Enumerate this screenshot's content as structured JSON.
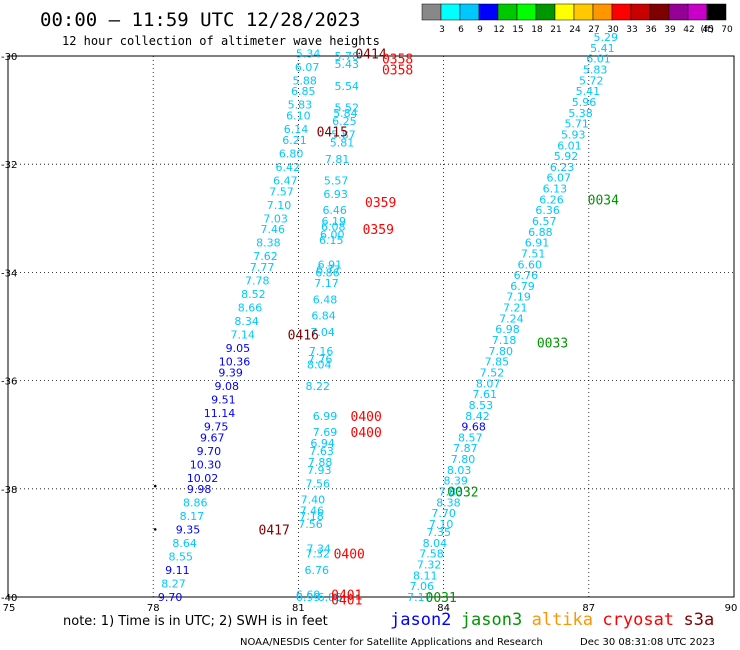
{
  "header": {
    "title": "00:00 – 11:59 UTC 12/28/2023",
    "subtitle": "12 hour collection of altimeter wave heights"
  },
  "legend": {
    "ticks": [
      "3",
      "6",
      "9",
      "12",
      "15",
      "18",
      "21",
      "24",
      "27",
      "30",
      "33",
      "36",
      "39",
      "42",
      "45",
      "70"
    ],
    "unit": "(ft)",
    "colors": [
      "#888888",
      "#00ffff",
      "#00c8ff",
      "#0000ff",
      "#00c800",
      "#00ff00",
      "#009600",
      "#ffff00",
      "#ffc800",
      "#ff9600",
      "#ff0000",
      "#c80000",
      "#800000",
      "#960096",
      "#c800c8",
      "#000000"
    ]
  },
  "axes": {
    "x_ticks": [
      "75",
      "78",
      "81",
      "84",
      "87",
      "90"
    ],
    "y_ticks": [
      "-30",
      "-32",
      "-34",
      "-36",
      "-38",
      "-40"
    ],
    "xlim": [
      75,
      90
    ],
    "ylim": [
      -40,
      -30
    ]
  },
  "colors": {
    "cyan": "#00c8ff",
    "blue": "#0000ff",
    "red": "#ff0000",
    "darkred": "#800000",
    "green": "#009600"
  },
  "chart_data": {
    "type": "scatter",
    "points": [
      {
        "lon": 81.2,
        "lat": -29.95,
        "v": "5.34",
        "c": "cyan"
      },
      {
        "lon": 81.18,
        "lat": -30.2,
        "v": "6.07",
        "c": "cyan"
      },
      {
        "lon": 81.13,
        "lat": -30.45,
        "v": "5.88",
        "c": "cyan"
      },
      {
        "lon": 81.1,
        "lat": -30.65,
        "v": "6.85",
        "c": "cyan"
      },
      {
        "lon": 81.03,
        "lat": -30.9,
        "v": "5.83",
        "c": "cyan"
      },
      {
        "lon": 81.0,
        "lat": -31.1,
        "v": "6.10",
        "c": "cyan"
      },
      {
        "lon": 80.95,
        "lat": -31.35,
        "v": "6.14",
        "c": "cyan"
      },
      {
        "lon": 80.92,
        "lat": -31.55,
        "v": "6.21",
        "c": "cyan"
      },
      {
        "lon": 80.85,
        "lat": -31.8,
        "v": "6.80",
        "c": "cyan"
      },
      {
        "lon": 80.78,
        "lat": -32.05,
        "v": "6.42",
        "c": "cyan"
      },
      {
        "lon": 80.73,
        "lat": -32.3,
        "v": "6.47",
        "c": "cyan"
      },
      {
        "lon": 80.65,
        "lat": -32.5,
        "v": "7.57",
        "c": "cyan"
      },
      {
        "lon": 80.6,
        "lat": -32.75,
        "v": "7.10",
        "c": "cyan"
      },
      {
        "lon": 80.53,
        "lat": -33.0,
        "v": "7.03",
        "c": "cyan"
      },
      {
        "lon": 80.47,
        "lat": -33.2,
        "v": "7.46",
        "c": "cyan"
      },
      {
        "lon": 80.38,
        "lat": -33.45,
        "v": "8.38",
        "c": "cyan"
      },
      {
        "lon": 80.32,
        "lat": -33.7,
        "v": "7.62",
        "c": "cyan"
      },
      {
        "lon": 80.25,
        "lat": -33.9,
        "v": "7.77",
        "c": "cyan"
      },
      {
        "lon": 80.15,
        "lat": -34.15,
        "v": "7.78",
        "c": "cyan"
      },
      {
        "lon": 80.07,
        "lat": -34.4,
        "v": "8.52",
        "c": "cyan"
      },
      {
        "lon": 80.0,
        "lat": -34.65,
        "v": "8.66",
        "c": "cyan"
      },
      {
        "lon": 79.93,
        "lat": -34.9,
        "v": "8.34",
        "c": "cyan"
      },
      {
        "lon": 79.85,
        "lat": -35.15,
        "v": "7.14",
        "c": "cyan"
      },
      {
        "lon": 79.75,
        "lat": -35.4,
        "v": "9.05",
        "c": "blue"
      },
      {
        "lon": 79.68,
        "lat": -35.65,
        "v": "10.36",
        "c": "blue"
      },
      {
        "lon": 79.6,
        "lat": -35.85,
        "v": "9.39",
        "c": "blue"
      },
      {
        "lon": 79.52,
        "lat": -36.1,
        "v": "9.08",
        "c": "blue"
      },
      {
        "lon": 79.45,
        "lat": -36.35,
        "v": "9.51",
        "c": "blue"
      },
      {
        "lon": 79.37,
        "lat": -36.6,
        "v": "11.14",
        "c": "blue"
      },
      {
        "lon": 79.3,
        "lat": -36.85,
        "v": "9.75",
        "c": "blue"
      },
      {
        "lon": 79.22,
        "lat": -37.05,
        "v": "9.67",
        "c": "blue"
      },
      {
        "lon": 79.15,
        "lat": -37.3,
        "v": "9.70",
        "c": "blue"
      },
      {
        "lon": 79.08,
        "lat": -37.55,
        "v": "10.30",
        "c": "blue"
      },
      {
        "lon": 79.02,
        "lat": -37.8,
        "v": "10.02",
        "c": "blue"
      },
      {
        "lon": 78.95,
        "lat": -38.0,
        "v": "9.98",
        "c": "blue"
      },
      {
        "lon": 78.87,
        "lat": -38.25,
        "v": "8.86",
        "c": "cyan"
      },
      {
        "lon": 78.8,
        "lat": -38.5,
        "v": "8.17",
        "c": "cyan"
      },
      {
        "lon": 78.72,
        "lat": -38.75,
        "v": "9.35",
        "c": "blue"
      },
      {
        "lon": 78.65,
        "lat": -39.0,
        "v": "8.64",
        "c": "cyan"
      },
      {
        "lon": 78.57,
        "lat": -39.25,
        "v": "8.55",
        "c": "cyan"
      },
      {
        "lon": 78.5,
        "lat": -39.5,
        "v": "9.11",
        "c": "blue"
      },
      {
        "lon": 78.42,
        "lat": -39.75,
        "v": "8.27",
        "c": "cyan"
      },
      {
        "lon": 78.35,
        "lat": -40.0,
        "v": "9.70",
        "c": "blue"
      },
      {
        "lon": 82.0,
        "lat": -30.0,
        "v": "5.70",
        "c": "cyan"
      },
      {
        "lon": 82.0,
        "lat": -30.15,
        "v": "5.43",
        "c": "cyan"
      },
      {
        "lon": 82.0,
        "lat": -30.55,
        "v": "5.54",
        "c": "cyan"
      },
      {
        "lon": 82.0,
        "lat": -30.95,
        "v": "5.52",
        "c": "cyan"
      },
      {
        "lon": 81.97,
        "lat": -31.05,
        "v": "5.84",
        "c": "cyan"
      },
      {
        "lon": 81.95,
        "lat": -31.2,
        "v": "6.25",
        "c": "cyan"
      },
      {
        "lon": 81.93,
        "lat": -31.45,
        "v": "5.87",
        "c": "cyan"
      },
      {
        "lon": 81.9,
        "lat": -31.6,
        "v": "5.81",
        "c": "cyan"
      },
      {
        "lon": 81.8,
        "lat": -31.9,
        "v": "7.81",
        "c": "cyan"
      },
      {
        "lon": 81.78,
        "lat": -32.3,
        "v": "5.57",
        "c": "cyan"
      },
      {
        "lon": 81.77,
        "lat": -32.55,
        "v": "6.93",
        "c": "cyan"
      },
      {
        "lon": 81.75,
        "lat": -32.85,
        "v": "6.46",
        "c": "cyan"
      },
      {
        "lon": 81.73,
        "lat": -33.05,
        "v": "6.19",
        "c": "cyan"
      },
      {
        "lon": 81.72,
        "lat": -33.15,
        "v": "6.08",
        "c": "cyan"
      },
      {
        "lon": 81.7,
        "lat": -33.3,
        "v": "6.00",
        "c": "cyan"
      },
      {
        "lon": 81.68,
        "lat": -33.4,
        "v": "6.15",
        "c": "cyan"
      },
      {
        "lon": 81.65,
        "lat": -33.85,
        "v": "6.91",
        "c": "cyan"
      },
      {
        "lon": 81.62,
        "lat": -33.95,
        "v": "6.77",
        "c": "cyan"
      },
      {
        "lon": 81.6,
        "lat": -34.0,
        "v": "6.86",
        "c": "cyan"
      },
      {
        "lon": 81.58,
        "lat": -34.2,
        "v": "7.17",
        "c": "cyan"
      },
      {
        "lon": 81.55,
        "lat": -34.5,
        "v": "6.48",
        "c": "cyan"
      },
      {
        "lon": 81.52,
        "lat": -34.8,
        "v": "6.84",
        "c": "cyan"
      },
      {
        "lon": 81.5,
        "lat": -35.1,
        "v": "7.04",
        "c": "cyan"
      },
      {
        "lon": 81.47,
        "lat": -35.45,
        "v": "7.16",
        "c": "cyan"
      },
      {
        "lon": 81.45,
        "lat": -35.6,
        "v": "7.76",
        "c": "cyan"
      },
      {
        "lon": 81.43,
        "lat": -35.7,
        "v": "8.04",
        "c": "cyan"
      },
      {
        "lon": 81.4,
        "lat": -36.1,
        "v": "8.22",
        "c": "cyan"
      },
      {
        "lon": 81.55,
        "lat": -36.65,
        "v": "6.99",
        "c": "cyan"
      },
      {
        "lon": 81.55,
        "lat": -36.95,
        "v": "7.69",
        "c": "cyan"
      },
      {
        "lon": 81.5,
        "lat": -37.15,
        "v": "6.94",
        "c": "cyan"
      },
      {
        "lon": 81.48,
        "lat": -37.3,
        "v": "7.63",
        "c": "cyan"
      },
      {
        "lon": 81.45,
        "lat": -37.5,
        "v": "7.88",
        "c": "cyan"
      },
      {
        "lon": 81.43,
        "lat": -37.65,
        "v": "7.93",
        "c": "cyan"
      },
      {
        "lon": 81.4,
        "lat": -37.9,
        "v": "7.56",
        "c": "cyan"
      },
      {
        "lon": 81.3,
        "lat": -38.2,
        "v": "7.40",
        "c": "cyan"
      },
      {
        "lon": 81.28,
        "lat": -38.4,
        "v": "7.46",
        "c": "cyan"
      },
      {
        "lon": 81.27,
        "lat": -38.5,
        "v": "7.18",
        "c": "cyan"
      },
      {
        "lon": 81.25,
        "lat": -38.65,
        "v": "7.56",
        "c": "cyan"
      },
      {
        "lon": 81.42,
        "lat": -39.1,
        "v": "7.34",
        "c": "cyan"
      },
      {
        "lon": 81.4,
        "lat": -39.2,
        "v": "7.32",
        "c": "cyan"
      },
      {
        "lon": 81.38,
        "lat": -39.5,
        "v": "6.76",
        "c": "cyan"
      },
      {
        "lon": 81.2,
        "lat": -39.95,
        "v": "6.69",
        "c": "cyan"
      },
      {
        "lon": 81.2,
        "lat": -40.0,
        "v": "6.99",
        "c": "cyan"
      },
      {
        "lon": 81.65,
        "lat": -40.0,
        "v": "6.85",
        "c": "cyan"
      },
      {
        "lon": 83.5,
        "lat": -40.0,
        "v": "7.17",
        "c": "cyan"
      },
      {
        "lon": 83.55,
        "lat": -39.8,
        "v": "7.06",
        "c": "cyan"
      },
      {
        "lon": 83.62,
        "lat": -39.6,
        "v": "8.11",
        "c": "cyan"
      },
      {
        "lon": 83.7,
        "lat": -39.4,
        "v": "7.32",
        "c": "cyan"
      },
      {
        "lon": 83.75,
        "lat": -39.2,
        "v": "7.58",
        "c": "cyan"
      },
      {
        "lon": 83.82,
        "lat": -39.0,
        "v": "8.04",
        "c": "cyan"
      },
      {
        "lon": 83.9,
        "lat": -38.8,
        "v": "7.35",
        "c": "cyan"
      },
      {
        "lon": 83.95,
        "lat": -38.65,
        "v": "7.10",
        "c": "cyan"
      },
      {
        "lon": 84.0,
        "lat": -38.45,
        "v": "7.70",
        "c": "cyan"
      },
      {
        "lon": 84.1,
        "lat": -38.25,
        "v": "8.38",
        "c": "cyan"
      },
      {
        "lon": 84.15,
        "lat": -38.05,
        "v": "7.83",
        "c": "cyan"
      },
      {
        "lon": 84.25,
        "lat": -37.85,
        "v": "8.39",
        "c": "cyan"
      },
      {
        "lon": 84.32,
        "lat": -37.65,
        "v": "8.03",
        "c": "cyan"
      },
      {
        "lon": 84.4,
        "lat": -37.45,
        "v": "7.80",
        "c": "cyan"
      },
      {
        "lon": 84.45,
        "lat": -37.25,
        "v": "7.87",
        "c": "cyan"
      },
      {
        "lon": 84.55,
        "lat": -37.05,
        "v": "8.57",
        "c": "cyan"
      },
      {
        "lon": 84.62,
        "lat": -36.85,
        "v": "9.68",
        "c": "blue"
      },
      {
        "lon": 84.7,
        "lat": -36.65,
        "v": "8.42",
        "c": "cyan"
      },
      {
        "lon": 84.77,
        "lat": -36.45,
        "v": "8.53",
        "c": "cyan"
      },
      {
        "lon": 84.85,
        "lat": -36.25,
        "v": "7.61",
        "c": "cyan"
      },
      {
        "lon": 84.92,
        "lat": -36.05,
        "v": "8.07",
        "c": "cyan"
      },
      {
        "lon": 85.0,
        "lat": -35.85,
        "v": "7.52",
        "c": "cyan"
      },
      {
        "lon": 85.1,
        "lat": -35.65,
        "v": "7.85",
        "c": "cyan"
      },
      {
        "lon": 85.18,
        "lat": -35.45,
        "v": "7.80",
        "c": "cyan"
      },
      {
        "lon": 85.25,
        "lat": -35.25,
        "v": "7.18",
        "c": "cyan"
      },
      {
        "lon": 85.32,
        "lat": -35.05,
        "v": "6.98",
        "c": "cyan"
      },
      {
        "lon": 85.4,
        "lat": -34.85,
        "v": "7.24",
        "c": "cyan"
      },
      {
        "lon": 85.48,
        "lat": -34.65,
        "v": "7.21",
        "c": "cyan"
      },
      {
        "lon": 85.55,
        "lat": -34.45,
        "v": "7.19",
        "c": "cyan"
      },
      {
        "lon": 85.63,
        "lat": -34.25,
        "v": "6.79",
        "c": "cyan"
      },
      {
        "lon": 85.7,
        "lat": -34.05,
        "v": "6.76",
        "c": "cyan"
      },
      {
        "lon": 85.78,
        "lat": -33.85,
        "v": "6.60",
        "c": "cyan"
      },
      {
        "lon": 85.85,
        "lat": -33.65,
        "v": "7.51",
        "c": "cyan"
      },
      {
        "lon": 85.93,
        "lat": -33.45,
        "v": "6.91",
        "c": "cyan"
      },
      {
        "lon": 86.0,
        "lat": -33.25,
        "v": "6.88",
        "c": "cyan"
      },
      {
        "lon": 86.08,
        "lat": -33.05,
        "v": "6.57",
        "c": "cyan"
      },
      {
        "lon": 86.15,
        "lat": -32.85,
        "v": "6.36",
        "c": "cyan"
      },
      {
        "lon": 86.23,
        "lat": -32.65,
        "v": "6.26",
        "c": "cyan"
      },
      {
        "lon": 86.3,
        "lat": -32.45,
        "v": "6.13",
        "c": "cyan"
      },
      {
        "lon": 86.38,
        "lat": -32.25,
        "v": "6.07",
        "c": "cyan"
      },
      {
        "lon": 86.45,
        "lat": -32.05,
        "v": "6.23",
        "c": "cyan"
      },
      {
        "lon": 86.53,
        "lat": -31.85,
        "v": "5.92",
        "c": "cyan"
      },
      {
        "lon": 86.6,
        "lat": -31.65,
        "v": "6.01",
        "c": "cyan"
      },
      {
        "lon": 86.68,
        "lat": -31.45,
        "v": "5.93",
        "c": "cyan"
      },
      {
        "lon": 86.75,
        "lat": -31.25,
        "v": "5.71",
        "c": "cyan"
      },
      {
        "lon": 86.83,
        "lat": -31.05,
        "v": "5.38",
        "c": "cyan"
      },
      {
        "lon": 86.9,
        "lat": -30.85,
        "v": "5.96",
        "c": "cyan"
      },
      {
        "lon": 86.98,
        "lat": -30.65,
        "v": "5.41",
        "c": "cyan"
      },
      {
        "lon": 87.05,
        "lat": -30.45,
        "v": "5.72",
        "c": "cyan"
      },
      {
        "lon": 87.13,
        "lat": -30.25,
        "v": "5.83",
        "c": "cyan"
      },
      {
        "lon": 87.2,
        "lat": -30.05,
        "v": "6.01",
        "c": "cyan"
      },
      {
        "lon": 87.28,
        "lat": -29.85,
        "v": "5.41",
        "c": "cyan"
      },
      {
        "lon": 87.35,
        "lat": -29.65,
        "v": "5.29",
        "c": "cyan"
      }
    ],
    "time_labels": [
      {
        "lon": 82.5,
        "lat": -29.95,
        "t": "0414",
        "c": "darkred"
      },
      {
        "lon": 83.05,
        "lat": -30.05,
        "t": "0358",
        "c": "red"
      },
      {
        "lon": 83.05,
        "lat": -30.25,
        "t": "0358",
        "c": "red"
      },
      {
        "lon": 81.7,
        "lat": -31.4,
        "t": "0415",
        "c": "darkred"
      },
      {
        "lon": 82.7,
        "lat": -32.7,
        "t": "0359",
        "c": "red"
      },
      {
        "lon": 82.65,
        "lat": -33.2,
        "t": "0359",
        "c": "red"
      },
      {
        "lon": 81.1,
        "lat": -35.15,
        "t": "0416",
        "c": "darkred"
      },
      {
        "lon": 82.4,
        "lat": -36.65,
        "t": "0400",
        "c": "red"
      },
      {
        "lon": 82.4,
        "lat": -36.95,
        "t": "0400",
        "c": "red"
      },
      {
        "lon": 80.5,
        "lat": -38.75,
        "t": "0417",
        "c": "darkred"
      },
      {
        "lon": 82.05,
        "lat": -39.2,
        "t": "0400",
        "c": "red"
      },
      {
        "lon": 82.0,
        "lat": -39.95,
        "t": "0401",
        "c": "red"
      },
      {
        "lon": 82.0,
        "lat": -40.05,
        "t": "0401",
        "c": "red"
      },
      {
        "lon": 87.3,
        "lat": -32.65,
        "t": "0034",
        "c": "green"
      },
      {
        "lon": 86.25,
        "lat": -35.3,
        "t": "0033",
        "c": "green"
      },
      {
        "lon": 84.4,
        "lat": -38.05,
        "t": "0032",
        "c": "green"
      },
      {
        "lon": 83.95,
        "lat": -40.0,
        "t": "0031",
        "c": "green"
      }
    ]
  },
  "note": "note: 1) Time is in UTC; 2) SWH is in feet",
  "satellites": [
    {
      "name": "jason2",
      "color": "#0000ff"
    },
    {
      "name": "jason3",
      "color": "#009600"
    },
    {
      "name": "altika",
      "color": "#ff9600"
    },
    {
      "name": "cryosat",
      "color": "#ff0000"
    },
    {
      "name": "s3a",
      "color": "#800000"
    }
  ],
  "footer": {
    "agency": "NOAA/NESDIS Center for Satellite Applications and Research",
    "timestamp": "Dec 30 08:31:08 UTC 2023"
  }
}
